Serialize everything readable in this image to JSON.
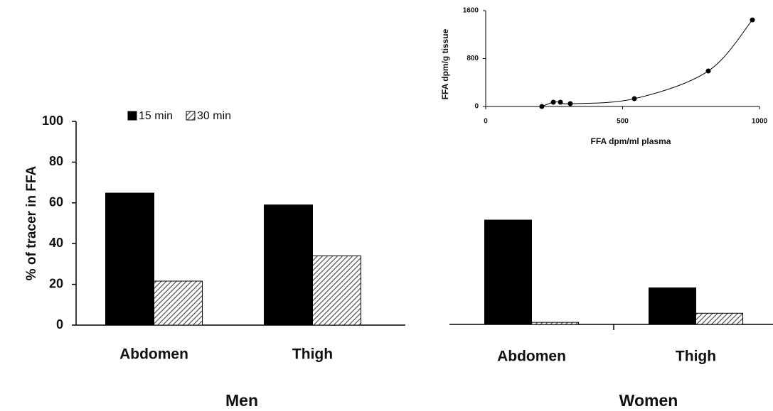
{
  "chart_data": [
    {
      "type": "bar",
      "title": "Men",
      "y_label": "% of tracer in FFA",
      "categories": [
        "Abdomen",
        "Thigh"
      ],
      "series": [
        {
          "name": "15 min",
          "color": "#000000",
          "values": [
            64.8,
            59
          ]
        },
        {
          "name": "30 min",
          "color": "#777777",
          "pattern": "hatch",
          "values": [
            21.6,
            34
          ]
        }
      ],
      "ylim": [
        0,
        100
      ],
      "yticks": [
        0,
        20,
        40,
        60,
        80,
        100
      ]
    },
    {
      "type": "bar",
      "title": "Women",
      "categories": [
        "Abdomen",
        "Thigh"
      ],
      "series": [
        {
          "name": "15 min",
          "color": "#000000",
          "values": [
            51.4,
            18
          ]
        },
        {
          "name": "30 min",
          "color": "#777777",
          "pattern": "hatch",
          "values": [
            1,
            5.5
          ]
        }
      ],
      "ylim": [
        0,
        100
      ]
    },
    {
      "type": "scatter",
      "x_label": "FFA dpm/ml plasma",
      "y_label": "FFA dpm/g tissue",
      "x": [
        205,
        247,
        273,
        309,
        543,
        813,
        974
      ],
      "values": [
        0,
        71,
        71,
        47,
        130,
        592,
        1445
      ],
      "color": "#000000",
      "curve": true,
      "xlim": [
        0,
        1000
      ],
      "xticks": [
        0,
        500,
        1000
      ],
      "ylim": [
        0,
        1600
      ],
      "yticks": [
        0,
        800,
        1600
      ]
    }
  ]
}
